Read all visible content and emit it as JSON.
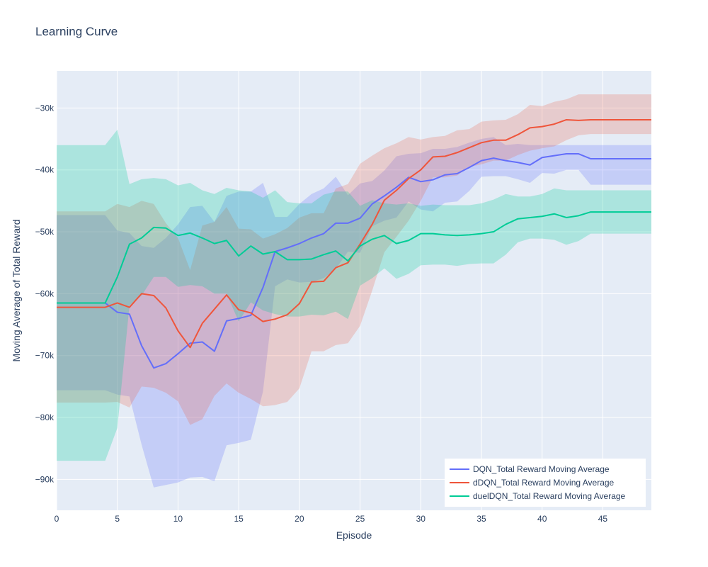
{
  "chart_data": {
    "type": "line",
    "title": "Learning Curve",
    "xlabel": "Episode",
    "ylabel": "Moving Average of Total Reward",
    "xlim": [
      0,
      49
    ],
    "ylim": [
      -95000,
      -24000
    ],
    "x_ticks": [
      0,
      5,
      10,
      15,
      20,
      25,
      30,
      35,
      40,
      45
    ],
    "x_tick_labels": [
      "0",
      "5",
      "10",
      "15",
      "20",
      "25",
      "30",
      "35",
      "40",
      "45"
    ],
    "y_ticks": [
      -90000,
      -80000,
      -70000,
      -60000,
      -50000,
      -40000,
      -30000
    ],
    "y_tick_labels": [
      "−90k",
      "−80k",
      "−70k",
      "−60k",
      "−50k",
      "−40k",
      "−30k"
    ],
    "grid": true,
    "plot_background": "#e5ecf6",
    "legend_position": "bottom-right",
    "x": [
      0,
      1,
      2,
      3,
      4,
      5,
      6,
      7,
      8,
      9,
      10,
      11,
      12,
      13,
      14,
      15,
      16,
      17,
      18,
      19,
      20,
      21,
      22,
      23,
      24,
      25,
      26,
      27,
      28,
      29,
      30,
      31,
      32,
      33,
      34,
      35,
      36,
      37,
      38,
      39,
      40,
      41,
      42,
      43,
      44,
      45,
      46,
      47,
      48,
      49
    ],
    "series": [
      {
        "name": "DQN_Total Reward Moving Average",
        "color": "#636efa",
        "band_color": "rgba(99,110,250,0.25)",
        "values": [
          -61500,
          -61500,
          -61500,
          -61500,
          -61500,
          -63000,
          -63300,
          -68400,
          -72000,
          -71300,
          -69700,
          -68000,
          -67800,
          -69300,
          -64400,
          -64000,
          -63500,
          -59000,
          -53200,
          -52600,
          -51900,
          -51000,
          -50300,
          -48600,
          -48600,
          -47800,
          -45500,
          -44200,
          -42800,
          -41200,
          -41900,
          -41600,
          -40800,
          -40600,
          -39600,
          -38500,
          -38100,
          -38500,
          -38800,
          -39200,
          -38000,
          -37700,
          -37400,
          -37400,
          -38200,
          -38200,
          -38200,
          -38200,
          -38200,
          -38200
        ],
        "upper": [
          -47300,
          -47300,
          -47300,
          -47300,
          -47300,
          -49800,
          -50200,
          -52300,
          -52600,
          -51000,
          -48800,
          -46000,
          -45800,
          -48400,
          -44200,
          -43500,
          -43500,
          -42100,
          -47600,
          -47600,
          -45500,
          -43900,
          -43000,
          -41100,
          -44100,
          -42200,
          -41800,
          -40100,
          -37800,
          -37400,
          -37300,
          -36600,
          -36600,
          -36300,
          -35600,
          -35000,
          -34700,
          -36000,
          -35800,
          -36000,
          -36000,
          -36000,
          -36000,
          -36000,
          -36000,
          -36000,
          -36000,
          -36000,
          -36000,
          -36000
        ],
        "lower": [
          -75600,
          -75600,
          -75600,
          -75600,
          -75600,
          -76300,
          -76600,
          -84400,
          -91300,
          -90900,
          -90500,
          -89700,
          -89600,
          -90300,
          -84500,
          -84100,
          -83600,
          -75800,
          -58800,
          -57700,
          -58200,
          -58100,
          -57500,
          -56000,
          -53200,
          -53400,
          -49100,
          -48200,
          -47700,
          -45100,
          -46400,
          -46700,
          -45300,
          -45100,
          -43400,
          -41100,
          -41000,
          -41000,
          -41500,
          -42100,
          -40500,
          -40600,
          -40000,
          -40000,
          -42400,
          -42400,
          -42400,
          -42400,
          -42400,
          -42400
        ]
      },
      {
        "name": "dDQN_Total Reward Moving Average",
        "color": "#ef553b",
        "band_color": "rgba(239,85,59,0.22)",
        "values": [
          -62200,
          -62200,
          -62200,
          -62200,
          -62200,
          -61500,
          -62200,
          -60000,
          -60300,
          -62300,
          -66000,
          -68700,
          -64800,
          -62500,
          -60200,
          -62600,
          -63100,
          -64500,
          -64100,
          -63400,
          -61600,
          -58100,
          -58000,
          -55800,
          -55000,
          -52000,
          -48800,
          -44900,
          -43300,
          -41400,
          -40000,
          -37900,
          -37800,
          -37200,
          -36400,
          -35600,
          -35200,
          -35200,
          -34300,
          -33200,
          -33000,
          -32600,
          -31900,
          -32000,
          -31900,
          -31900,
          -31900,
          -31900,
          -31900,
          -31900
        ],
        "upper": [
          -46700,
          -46700,
          -46700,
          -46700,
          -46700,
          -45500,
          -46000,
          -45000,
          -45500,
          -48600,
          -51000,
          -56200,
          -49000,
          -48400,
          -46000,
          -49500,
          -49600,
          -51100,
          -50400,
          -49400,
          -47700,
          -47000,
          -47000,
          -43000,
          -42300,
          -39000,
          -37700,
          -36500,
          -35700,
          -34700,
          -35100,
          -34700,
          -34500,
          -33600,
          -33400,
          -32200,
          -32000,
          -31900,
          -31000,
          -29500,
          -29700,
          -29000,
          -28600,
          -27800,
          -27800,
          -27800,
          -27800,
          -27800,
          -27800,
          -27800
        ],
        "lower": [
          -77600,
          -77600,
          -77600,
          -77600,
          -77600,
          -77500,
          -78400,
          -75000,
          -75200,
          -76000,
          -77400,
          -81200,
          -80300,
          -76500,
          -74500,
          -76000,
          -77000,
          -78200,
          -78000,
          -77500,
          -75300,
          -69300,
          -69300,
          -68300,
          -68000,
          -65200,
          -59500,
          -53300,
          -50800,
          -48200,
          -45000,
          -41200,
          -41200,
          -40900,
          -39500,
          -39100,
          -38500,
          -38500,
          -37600,
          -36900,
          -36500,
          -36200,
          -35200,
          -34400,
          -34200,
          -34200,
          -34200,
          -34200,
          -34200,
          -34200
        ]
      },
      {
        "name": "duelDQN_Total Reward Moving Average",
        "color": "#00cc96",
        "band_color": "rgba(0,204,150,0.25)",
        "values": [
          -61500,
          -61500,
          -61500,
          -61500,
          -61500,
          -57300,
          -52000,
          -51000,
          -49300,
          -49400,
          -50600,
          -50200,
          -51000,
          -51900,
          -51400,
          -53900,
          -52300,
          -53600,
          -53200,
          -54500,
          -54500,
          -54400,
          -53700,
          -53100,
          -54700,
          -52300,
          -51200,
          -50600,
          -51900,
          -51400,
          -50300,
          -50300,
          -50500,
          -50600,
          -50500,
          -50300,
          -50000,
          -48800,
          -47900,
          -47700,
          -47500,
          -47100,
          -47700,
          -47400,
          -46800,
          -46800,
          -46800,
          -46800,
          -46800,
          -46800
        ],
        "upper": [
          -36000,
          -36000,
          -36000,
          -36000,
          -36000,
          -33500,
          -42300,
          -41500,
          -41300,
          -41500,
          -42500,
          -42100,
          -43300,
          -43900,
          -42900,
          -43300,
          -43500,
          -44500,
          -43300,
          -45200,
          -45400,
          -45400,
          -44000,
          -43500,
          -43500,
          -45800,
          -44900,
          -45400,
          -45600,
          -45400,
          -45800,
          -45600,
          -45700,
          -45700,
          -45700,
          -45400,
          -44800,
          -43900,
          -44300,
          -44300,
          -43900,
          -43000,
          -43300,
          -43300,
          -43300,
          -43300,
          -43300,
          -43300,
          -43300,
          -43300
        ],
        "lower": [
          -87000,
          -87000,
          -87000,
          -87000,
          -87000,
          -81700,
          -61900,
          -60300,
          -57300,
          -57300,
          -58900,
          -58600,
          -58800,
          -60000,
          -60000,
          -64500,
          -61400,
          -62700,
          -63300,
          -63700,
          -63700,
          -63400,
          -63500,
          -62900,
          -64100,
          -58700,
          -57500,
          -55900,
          -57600,
          -56800,
          -55400,
          -55300,
          -55300,
          -55500,
          -55200,
          -55100,
          -55100,
          -53700,
          -51700,
          -51100,
          -51100,
          -51300,
          -52100,
          -51500,
          -50300,
          -50300,
          -50300,
          -50300,
          -50300,
          -50300
        ]
      }
    ]
  }
}
